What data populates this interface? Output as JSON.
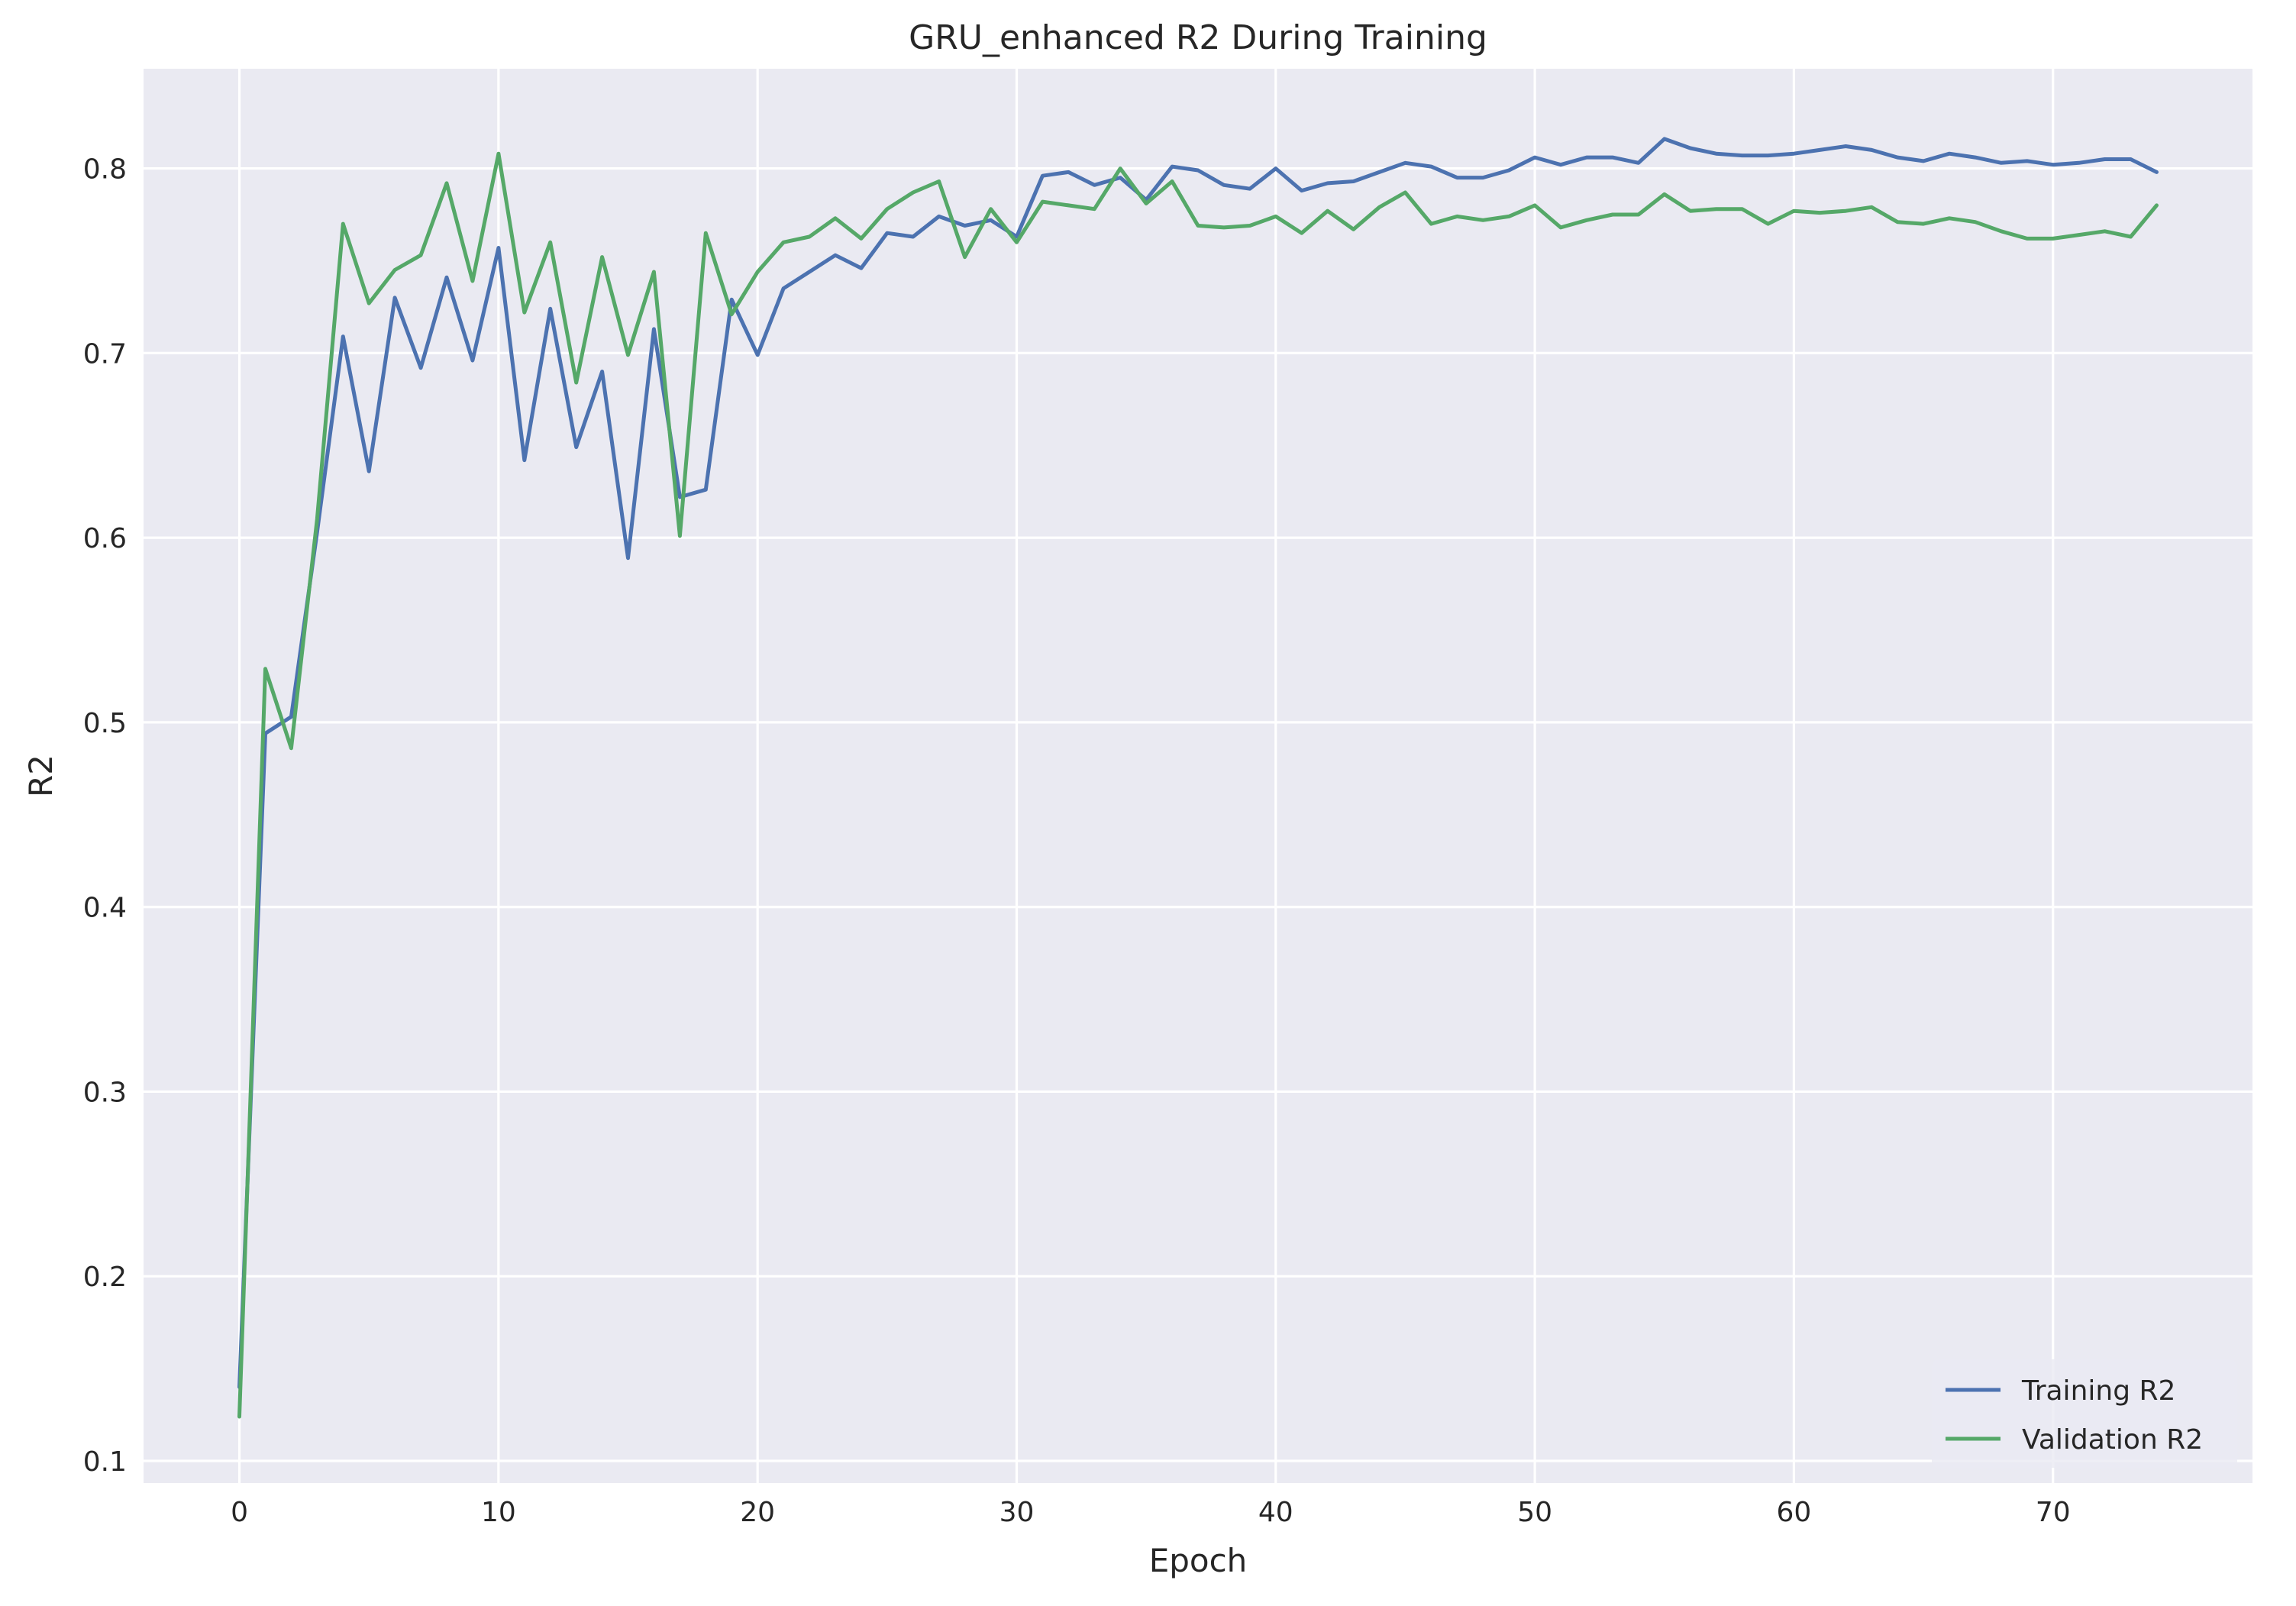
{
  "chart_data": {
    "type": "line",
    "title": "GRU_enhanced R2 During Training",
    "xlabel": "Epoch",
    "ylabel": "R2",
    "xlim": [
      -3.7,
      77.7
    ],
    "ylim": [
      0.088,
      0.854
    ],
    "xticks": [
      0,
      10,
      20,
      30,
      40,
      50,
      60,
      70
    ],
    "yticks": [
      0.1,
      0.2,
      0.3,
      0.4,
      0.5,
      0.6,
      0.7,
      0.8
    ],
    "xtick_labels": [
      "0",
      "10",
      "20",
      "30",
      "40",
      "50",
      "60",
      "70"
    ],
    "ytick_labels": [
      "0.1",
      "0.2",
      "0.3",
      "0.4",
      "0.5",
      "0.6",
      "0.7",
      "0.8"
    ],
    "grid": true,
    "legend_position": "bottom-right",
    "background": "#eaeaf2",
    "x": [
      0,
      1,
      2,
      3,
      4,
      5,
      6,
      7,
      8,
      9,
      10,
      11,
      12,
      13,
      14,
      15,
      16,
      17,
      18,
      19,
      20,
      21,
      22,
      23,
      24,
      25,
      26,
      27,
      28,
      29,
      30,
      31,
      32,
      33,
      34,
      35,
      36,
      37,
      38,
      39,
      40,
      41,
      42,
      43,
      44,
      45,
      46,
      47,
      48,
      49,
      50,
      51,
      52,
      53,
      54,
      55,
      56,
      57,
      58,
      59,
      60,
      61,
      62,
      63,
      64,
      65,
      66,
      67,
      68,
      69,
      70,
      71,
      72,
      73,
      74
    ],
    "series": [
      {
        "name": "Training R2",
        "color": "#4c72b0",
        "values": [
          0.14,
          0.494,
          0.503,
          0.603,
          0.709,
          0.636,
          0.73,
          0.692,
          0.741,
          0.696,
          0.757,
          0.642,
          0.724,
          0.649,
          0.69,
          0.589,
          0.713,
          0.622,
          0.626,
          0.729,
          0.699,
          0.735,
          0.744,
          0.753,
          0.746,
          0.765,
          0.763,
          0.774,
          0.769,
          0.772,
          0.763,
          0.796,
          0.798,
          0.791,
          0.795,
          0.783,
          0.801,
          0.799,
          0.791,
          0.789,
          0.8,
          0.788,
          0.792,
          0.793,
          0.798,
          0.803,
          0.801,
          0.795,
          0.795,
          0.799,
          0.806,
          0.802,
          0.806,
          0.806,
          0.803,
          0.816,
          0.811,
          0.808,
          0.807,
          0.807,
          0.808,
          0.81,
          0.812,
          0.81,
          0.806,
          0.804,
          0.808,
          0.806,
          0.803,
          0.804,
          0.802,
          0.803,
          0.805,
          0.805,
          0.798
        ]
      },
      {
        "name": "Validation R2",
        "color": "#55a868",
        "values": [
          0.124,
          0.529,
          0.486,
          0.61,
          0.77,
          0.727,
          0.745,
          0.753,
          0.792,
          0.739,
          0.808,
          0.722,
          0.76,
          0.684,
          0.752,
          0.699,
          0.744,
          0.601,
          0.765,
          0.721,
          0.744,
          0.76,
          0.763,
          0.773,
          0.762,
          0.778,
          0.787,
          0.793,
          0.752,
          0.778,
          0.76,
          0.782,
          0.78,
          0.778,
          0.8,
          0.781,
          0.793,
          0.769,
          0.768,
          0.769,
          0.774,
          0.765,
          0.777,
          0.767,
          0.779,
          0.787,
          0.77,
          0.774,
          0.772,
          0.774,
          0.78,
          0.768,
          0.772,
          0.775,
          0.775,
          0.786,
          0.777,
          0.778,
          0.778,
          0.77,
          0.777,
          0.776,
          0.777,
          0.779,
          0.771,
          0.77,
          0.773,
          0.771,
          0.766,
          0.762,
          0.762,
          0.764,
          0.766,
          0.763,
          0.78
        ]
      }
    ]
  }
}
